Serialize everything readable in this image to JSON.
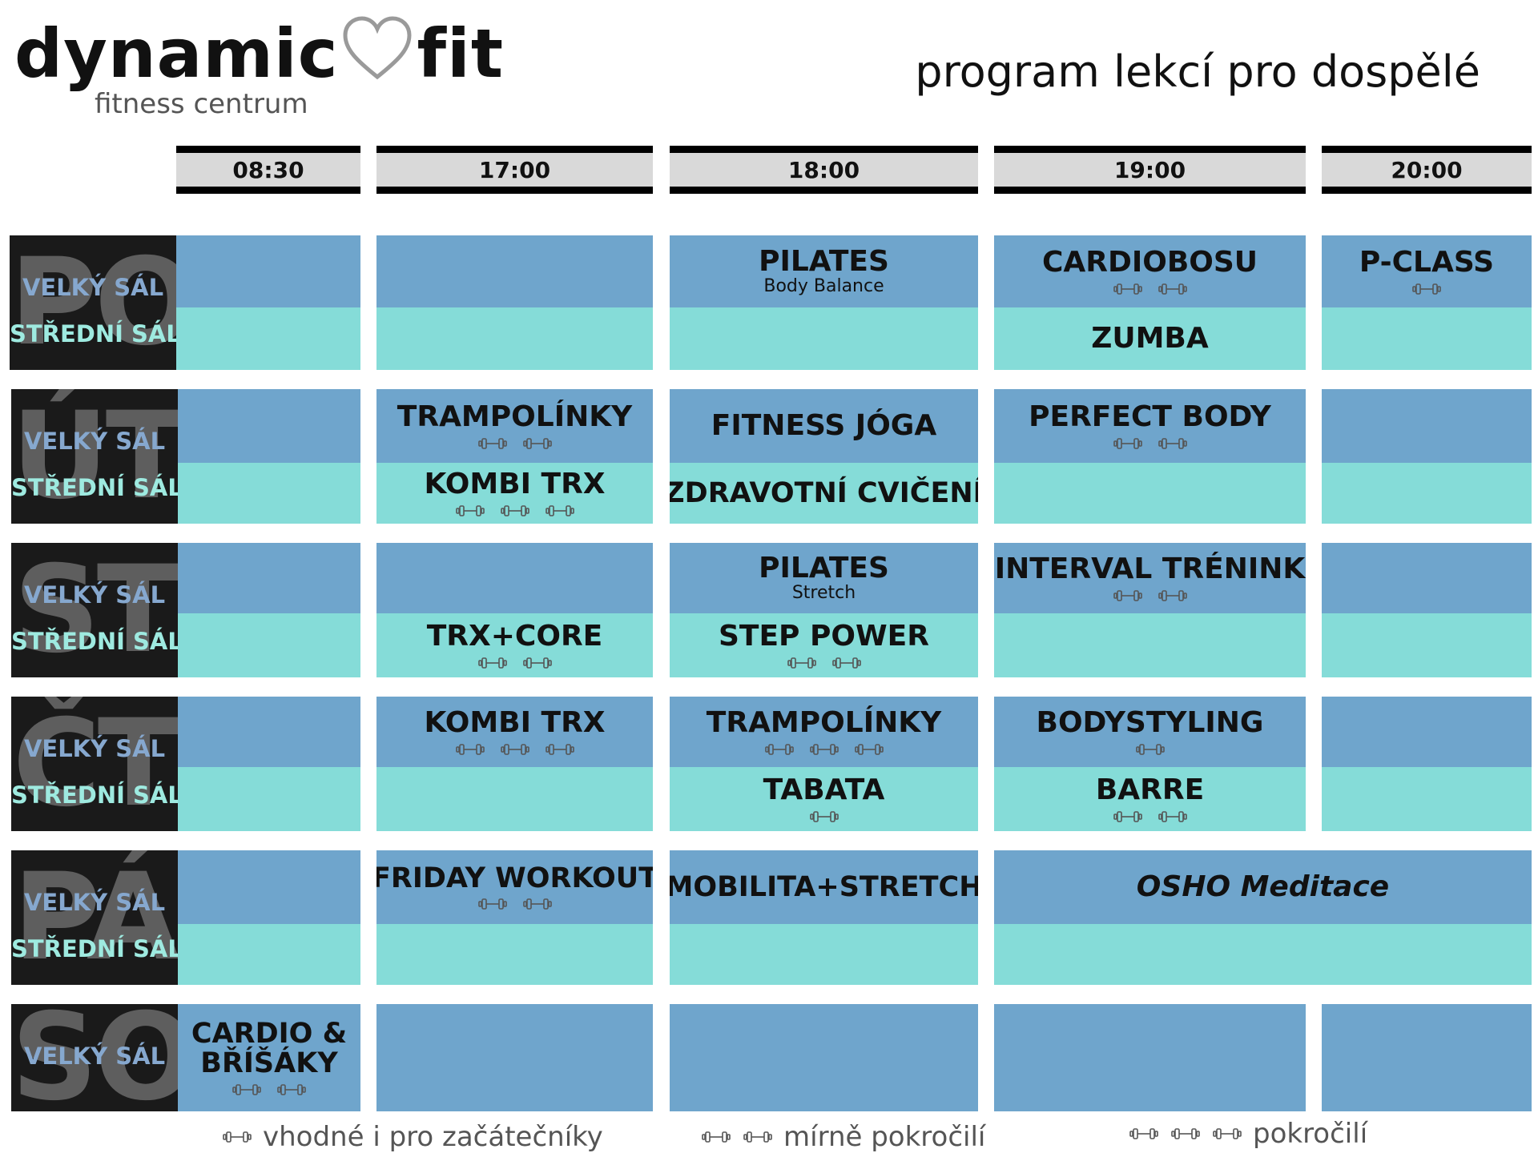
{
  "brand": {
    "name_part1": "dynamic",
    "name_part2": "fit",
    "subtitle": "fitness centrum"
  },
  "page_title": "program lekcí pro dospělé",
  "times": [
    "08:30",
    "17:00",
    "18:00",
    "19:00",
    "20:00"
  ],
  "days": [
    {
      "abbr": "PO",
      "halls": [
        "VELKÝ SÁL",
        "STŘEDNÍ SÁL"
      ]
    },
    {
      "abbr": "ÚT",
      "halls": [
        "VELKÝ SÁL",
        "STŘEDNÍ SÁL"
      ]
    },
    {
      "abbr": "ST",
      "halls": [
        "VELKÝ SÁL",
        "STŘEDNÍ SÁL"
      ]
    },
    {
      "abbr": "ČT",
      "halls": [
        "VELKÝ SÁL",
        "STŘEDNÍ SÁL"
      ]
    },
    {
      "abbr": "PÁ",
      "halls": [
        "VELKÝ SÁL",
        "STŘEDNÍ SÁL"
      ]
    },
    {
      "abbr": "SO",
      "halls": [
        "VELKÝ SÁL"
      ]
    }
  ],
  "classes": {
    "po_1800_big": {
      "name": "PILATES",
      "sub": "Body Balance"
    },
    "po_1900_big": {
      "name": "CARDIOBOSU",
      "level": 2
    },
    "po_1900_mid": {
      "name": "ZUMBA"
    },
    "po_2000_big": {
      "name": "P-CLASS",
      "level": 1
    },
    "ut_1700_big": {
      "name": "TRAMPOLÍNKY",
      "level": 2
    },
    "ut_1700_mid": {
      "name": "KOMBI TRX",
      "level": 3
    },
    "ut_1800_big": {
      "name": "FITNESS JÓGA"
    },
    "ut_1800_mid": {
      "name": "ZDRAVOTNÍ CVIČENÍ"
    },
    "ut_1900_big": {
      "name": "PERFECT BODY",
      "level": 2
    },
    "st_1700_mid": {
      "name": "TRX+CORE",
      "level": 2
    },
    "st_1800_big": {
      "name": "PILATES",
      "sub": "Stretch"
    },
    "st_1800_mid": {
      "name": "STEP POWER",
      "level": 2
    },
    "st_1900_big": {
      "name": "INTERVAL TRÉNINK",
      "level": 2
    },
    "ct_1700_big": {
      "name": "KOMBI TRX",
      "level": 3
    },
    "ct_1800_big": {
      "name": "TRAMPOLÍNKY",
      "level": 3
    },
    "ct_1800_mid": {
      "name": "TABATA",
      "level": 1
    },
    "ct_1900_big": {
      "name": "BODYSTYLING",
      "level": 1
    },
    "ct_1900_mid": {
      "name": "BARRE",
      "level": 2
    },
    "pa_1700_big": {
      "name": "FRIDAY WORKOUT",
      "level": 2
    },
    "pa_1800_big": {
      "name": "MOBILITA+STRETCH"
    },
    "pa_1900_big": {
      "name": "OSHO Meditace"
    },
    "so_0830_big": {
      "name": "CARDIO & BŘÍŠÁKY",
      "level": 2
    }
  },
  "legend": [
    {
      "label": "vhodné i pro začátečníky",
      "level": 1
    },
    {
      "label": "mírně pokročilí",
      "level": 2
    },
    {
      "label": "pokročilí",
      "level": 3
    }
  ],
  "colors": {
    "big_hall": "#6fa5cc",
    "middle_hall": "#85dcd8",
    "day_block": "#1a1a1a",
    "header_bar": "#d9d9d9"
  }
}
